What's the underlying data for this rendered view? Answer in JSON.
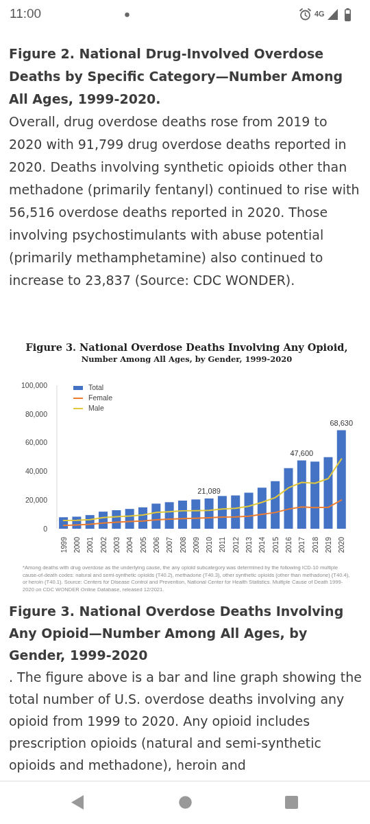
{
  "chart_data": {
    "type": "bar",
    "title": "Figure 3. National Overdose Deaths Involving Any Opioid,",
    "subtitle": "Number Among All Ages, by Gender, 1999-2020",
    "categories": [
      "1999",
      "2000",
      "2001",
      "2002",
      "2003",
      "2004",
      "2005",
      "2006",
      "2007",
      "2008",
      "2009",
      "2010",
      "2011",
      "2012",
      "2013",
      "2014",
      "2015",
      "2016",
      "2017",
      "2018",
      "2019",
      "2020"
    ],
    "series": [
      {
        "name": "Total",
        "color": "#4472c4",
        "values": [
          8000,
          8400,
          9500,
          11900,
          12900,
          13800,
          14900,
          17500,
          18500,
          19600,
          20400,
          21089,
          22800,
          23200,
          25100,
          28600,
          33100,
          42200,
          47600,
          46800,
          49900,
          68630
        ],
        "value_labels": [
          null,
          null,
          null,
          null,
          null,
          null,
          null,
          null,
          null,
          null,
          null,
          "21,089",
          null,
          null,
          null,
          null,
          null,
          null,
          "47,600",
          null,
          null,
          "68,630"
        ]
      },
      {
        "name": "Female",
        "type": "line",
        "color": "#ed7d31",
        "values": [
          2300,
          2600,
          3100,
          4000,
          4500,
          5000,
          5400,
          6200,
          6700,
          7000,
          7300,
          7700,
          8100,
          8200,
          8700,
          10000,
          11300,
          13700,
          15200,
          14700,
          14900,
          20000
        ]
      },
      {
        "name": "Male",
        "type": "line",
        "color": "#e2c83c",
        "values": [
          5800,
          5900,
          6300,
          7800,
          8400,
          8800,
          9600,
          11400,
          11900,
          12500,
          12600,
          12800,
          13800,
          14200,
          15700,
          18400,
          21700,
          28500,
          32300,
          31700,
          34900,
          48600
        ]
      }
    ],
    "ylim": [
      0,
      100000
    ],
    "yticks": [
      {
        "value": 0,
        "label": "0"
      },
      {
        "value": 20000,
        "label": "20,000"
      },
      {
        "value": 40000,
        "label": "40,000"
      },
      {
        "value": 60000,
        "label": "60,000"
      },
      {
        "value": 80000,
        "label": "80,000"
      },
      {
        "value": 100000,
        "label": "100,000"
      }
    ],
    "legend": "top left",
    "marker": "none",
    "annotations": [
      "11:00",
      "4G",
      "Figure 2. National Drug-Involved Overdose Deaths by Specific Category—Number Among All Ages, 1999-2020.",
      "Overall, drug overdose deaths rose from 2019 to 2020 with 91,799 drug overdose deaths reported in 2020. Deaths involving synthetic opioids other than methadone (primarily fentanyl) continued to rise with 56,516 overdose deaths reported in 2020. Those involving psychostimulants with abuse potential (primarily methamphetamine) also continued to increase to 23,837 (Source: CDC WONDER).",
      "*Among deaths with drug overdose as the underlying cause, the any opioid subcategory was determined by the following ICD-10 multiple cause-of-death codes: natural and semi-synthetic opioids (T40.2), methadone (T40.3), other synthetic opioids (other than methadone) (T40.4), or heroin (T40.1).  Source: Centers for Disease Control and Prevention, National Center for Health Statistics. Multiple Cause of Death 1999-2020 on CDC WONDER Online Database, released 12/2021.",
      "Figure 3. National Overdose Deaths Involving Any Opioid—Number Among All Ages, by Gender, 1999-2020",
      ". The figure above is a bar and line graph showing the total number of U.S. overdose deaths involving any opioid from 1999 to 2020. Any opioid includes prescription opioids (natural and semi-synthetic opioids and methadone), heroin and"
    ]
  }
}
